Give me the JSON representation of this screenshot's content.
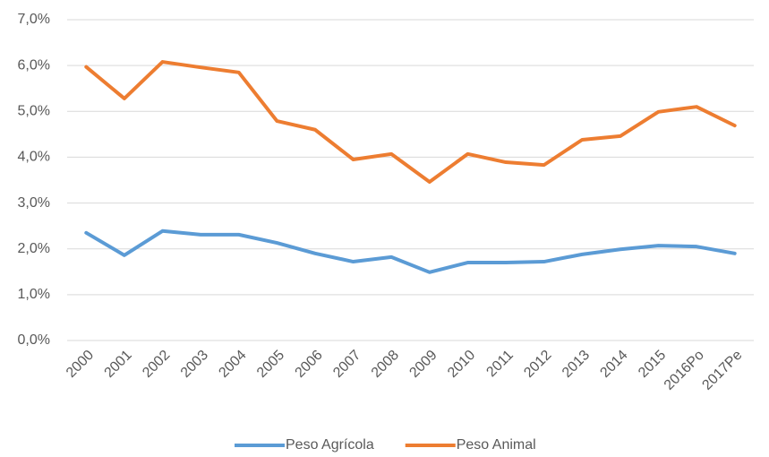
{
  "chart_data": {
    "type": "line",
    "categories": [
      "2000",
      "2001",
      "2002",
      "2003",
      "2004",
      "2005",
      "2006",
      "2007",
      "2008",
      "2009",
      "2010",
      "2011",
      "2012",
      "2013",
      "2014",
      "2015",
      "2016Po",
      "2017Pe"
    ],
    "series": [
      {
        "name": "Peso Agrícola",
        "color": "#5b9bd5",
        "values": [
          2.35,
          1.86,
          2.39,
          2.31,
          2.31,
          2.13,
          1.9,
          1.72,
          1.82,
          1.49,
          1.7,
          1.7,
          1.72,
          1.88,
          1.99,
          2.07,
          2.05,
          1.9
        ]
      },
      {
        "name": "Peso Animal",
        "color": "#ed7d31",
        "values": [
          5.97,
          5.28,
          6.08,
          5.96,
          5.85,
          4.79,
          4.6,
          3.95,
          4.07,
          3.46,
          4.07,
          3.89,
          3.83,
          4.38,
          4.46,
          4.99,
          5.1,
          4.69
        ]
      }
    ],
    "ylim": [
      0,
      7
    ],
    "yticks": [
      {
        "value": 0,
        "label": "0,0%"
      },
      {
        "value": 1,
        "label": "1,0%"
      },
      {
        "value": 2,
        "label": "2,0%"
      },
      {
        "value": 3,
        "label": "3,0%"
      },
      {
        "value": 4,
        "label": "4,0%"
      },
      {
        "value": 5,
        "label": "5,0%"
      },
      {
        "value": 6,
        "label": "6,0%"
      },
      {
        "value": 7,
        "label": "7,0%"
      }
    ],
    "grid": true,
    "legend": "bottom"
  }
}
